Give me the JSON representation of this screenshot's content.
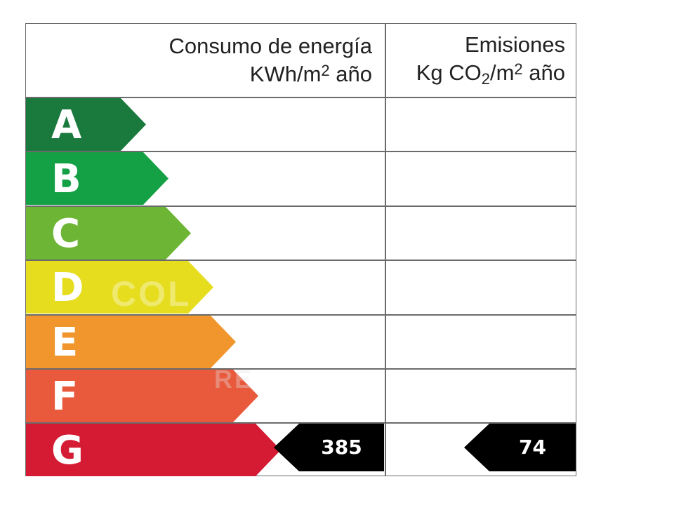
{
  "headers": {
    "energy": {
      "line1": "Consumo de energía",
      "line2_pre": "KWh/m",
      "line2_sup": "2",
      "line2_post": " año"
    },
    "emissions": {
      "line1": "Emisiones",
      "line2_pre": "Kg CO",
      "line2_sub": "2",
      "line2_mid": "/m",
      "line2_sup": "2",
      "line2_post": " año"
    }
  },
  "bands": [
    {
      "letter": "A",
      "color": "#1a7a3d"
    },
    {
      "letter": "B",
      "color": "#14a045"
    },
    {
      "letter": "C",
      "color": "#6db534"
    },
    {
      "letter": "D",
      "color": "#e6dd1f"
    },
    {
      "letter": "E",
      "color": "#f0962d"
    },
    {
      "letter": "F",
      "color": "#e95a3c"
    },
    {
      "letter": "G",
      "color": "#d41b33"
    }
  ],
  "rating": {
    "energy_class": "G",
    "energy_value": "385",
    "emissions_class": "G",
    "emissions_value": "74",
    "badge_color": "#000000"
  },
  "watermark": {
    "line1": "COL",
    "line2": "RE"
  }
}
